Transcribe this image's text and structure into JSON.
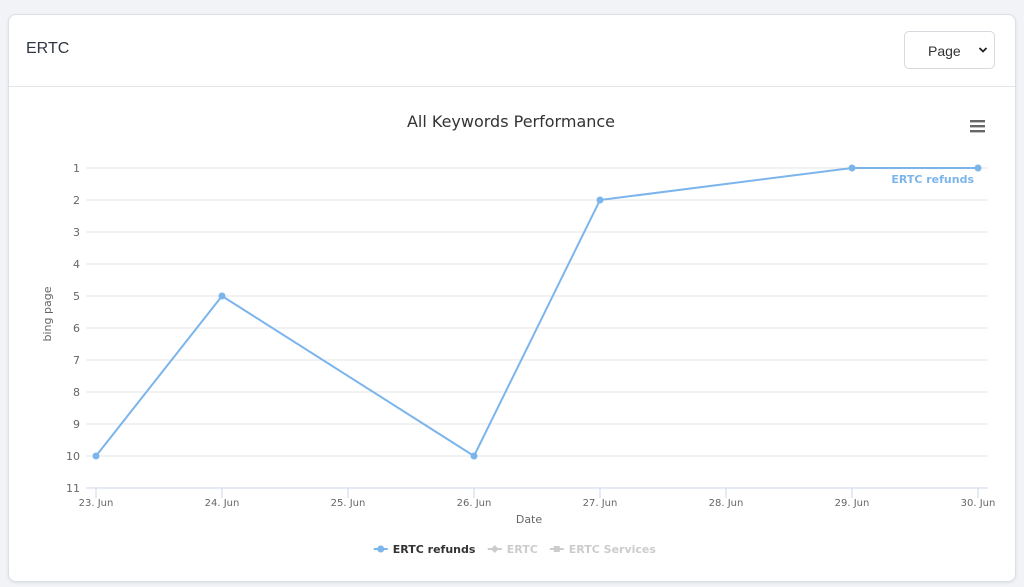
{
  "card": {
    "title": "ERTC",
    "select_value": "Page"
  },
  "icons": {
    "select_chevron": "chevron-down-icon",
    "chart_menu": "hamburger-menu-icon"
  },
  "colors": {
    "series_active": "#7cb5ec",
    "legend_inactive": "#cccccc",
    "grid": "#e6e6e6"
  },
  "chart_data": {
    "type": "line",
    "title": "All Keywords Performance",
    "xlabel": "Date",
    "ylabel": "bing page",
    "categories": [
      "23. Jun",
      "24. Jun",
      "25. Jun",
      "26. Jun",
      "27. Jun",
      "28. Jun",
      "29. Jun",
      "30. Jun"
    ],
    "y_reversed": true,
    "ylim": [
      1,
      11
    ],
    "yticks": [
      1,
      2,
      3,
      4,
      5,
      6,
      7,
      8,
      9,
      10,
      11
    ],
    "grid": true,
    "series": [
      {
        "name": "ERTC refunds",
        "visible": true,
        "points": [
          {
            "x": "23. Jun",
            "y": 10
          },
          {
            "x": "24. Jun",
            "y": 5
          },
          {
            "x": "26. Jun",
            "y": 10
          },
          {
            "x": "27. Jun",
            "y": 2
          },
          {
            "x": "29. Jun",
            "y": 1
          },
          {
            "x": "30. Jun",
            "y": 1
          }
        ],
        "end_label": "ERTC refunds"
      },
      {
        "name": "ERTC",
        "visible": false,
        "points": []
      },
      {
        "name": "ERTC Services",
        "visible": false,
        "points": []
      }
    ],
    "legend": {
      "placement": "bottom-center"
    }
  }
}
